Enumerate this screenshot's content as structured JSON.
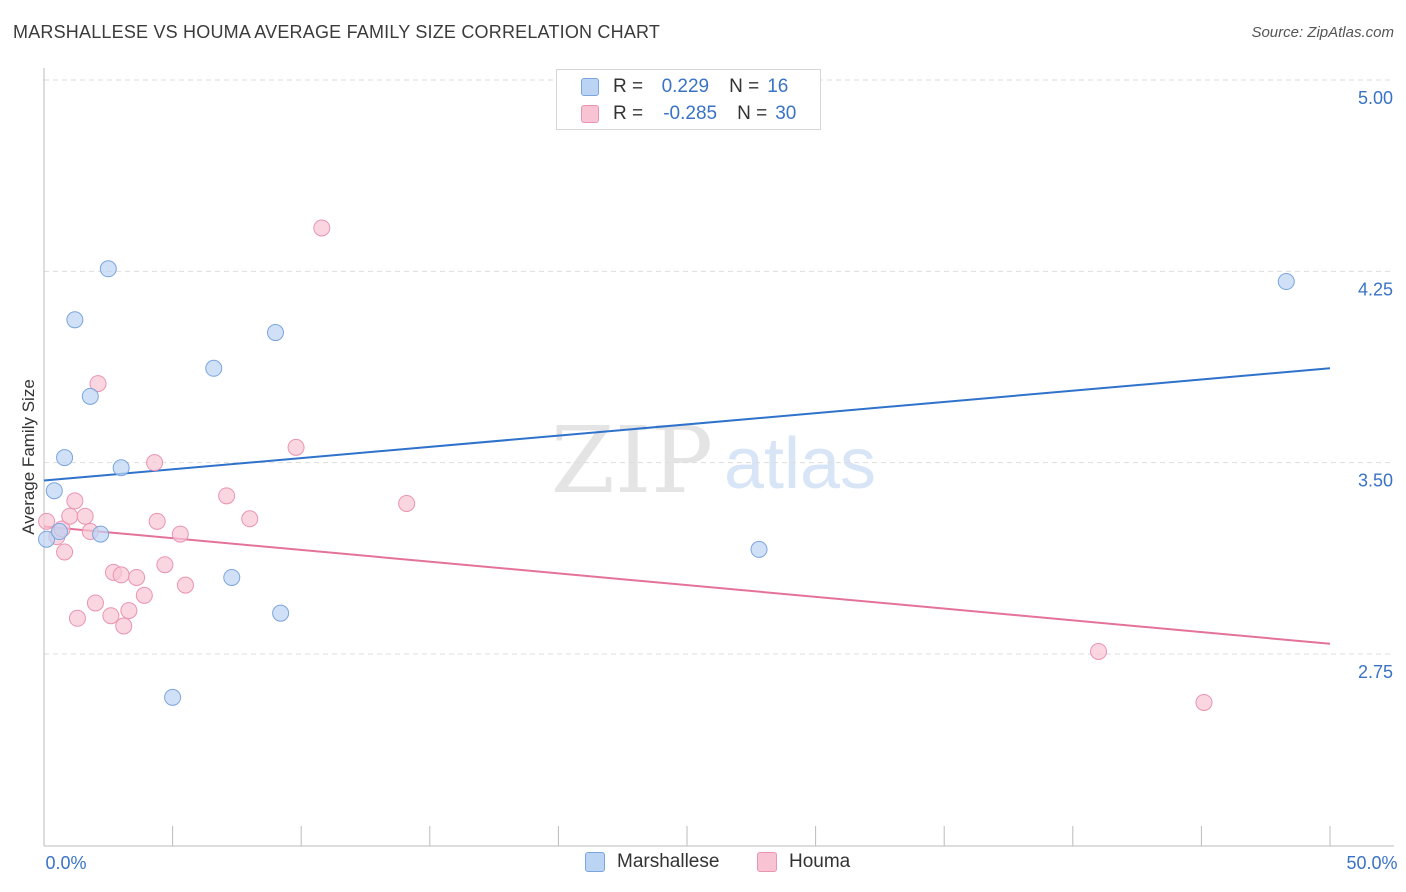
{
  "title": "MARSHALLESE VS HOUMA AVERAGE FAMILY SIZE CORRELATION CHART",
  "source": "Source: ZipAtlas.com",
  "watermark": {
    "zip": "ZIP",
    "atlas": "atlas"
  },
  "colors": {
    "blue_fill": "#bcd4f4",
    "blue_stroke": "#7aa5de",
    "blue_line": "#2f72cc",
    "pink_fill": "#f8c4d4",
    "pink_stroke": "#e994b0",
    "pink_line": "#e4729a",
    "tick_text": "#3a73c6"
  },
  "legend": [
    {
      "r_label": "R =",
      "r_value": "0.229",
      "n_label": "N =",
      "n_value": "16"
    },
    {
      "r_label": "R =",
      "r_value": "-0.285",
      "n_label": "N =",
      "n_value": "30"
    }
  ],
  "chart_data": {
    "type": "scatter",
    "title": "MARSHALLESE VS HOUMA AVERAGE FAMILY SIZE CORRELATION CHART",
    "xlabel": "",
    "ylabel": "Average Family Size",
    "xlim": [
      0,
      50
    ],
    "ylim": [
      2.0,
      5.1
    ],
    "x_tick_labels": [
      "0.0%",
      "50.0%"
    ],
    "y_ticks": [
      2.75,
      3.5,
      4.25,
      5.0
    ],
    "y_tick_labels": [
      "2.75",
      "3.50",
      "4.25",
      "5.00"
    ],
    "grid": true,
    "series": [
      {
        "name": "Marshallese",
        "points": [
          [
            0.1,
            3.2
          ],
          [
            0.4,
            3.39
          ],
          [
            0.8,
            3.52
          ],
          [
            1.2,
            4.06
          ],
          [
            1.8,
            3.76
          ],
          [
            2.5,
            4.26
          ],
          [
            2.2,
            3.22
          ],
          [
            3.0,
            3.48
          ],
          [
            5.0,
            2.58
          ],
          [
            6.6,
            3.87
          ],
          [
            7.3,
            3.05
          ],
          [
            9.0,
            4.01
          ],
          [
            9.2,
            2.91
          ],
          [
            27.8,
            3.16
          ],
          [
            48.3,
            4.21
          ],
          [
            0.6,
            3.23
          ]
        ],
        "trend": {
          "x": [
            0,
            50
          ],
          "y": [
            3.43,
            3.87
          ]
        }
      },
      {
        "name": "Houma",
        "points": [
          [
            0.1,
            3.27
          ],
          [
            0.5,
            3.21
          ],
          [
            0.7,
            3.24
          ],
          [
            0.8,
            3.15
          ],
          [
            1.0,
            3.29
          ],
          [
            1.2,
            3.35
          ],
          [
            1.3,
            2.89
          ],
          [
            1.6,
            3.29
          ],
          [
            1.8,
            3.23
          ],
          [
            2.0,
            2.95
          ],
          [
            2.1,
            3.81
          ],
          [
            2.6,
            2.9
          ],
          [
            2.7,
            3.07
          ],
          [
            3.0,
            3.06
          ],
          [
            3.1,
            2.86
          ],
          [
            3.3,
            2.92
          ],
          [
            3.6,
            3.05
          ],
          [
            3.9,
            2.98
          ],
          [
            4.3,
            3.5
          ],
          [
            4.4,
            3.27
          ],
          [
            4.7,
            3.1
          ],
          [
            5.3,
            3.22
          ],
          [
            5.5,
            3.02
          ],
          [
            7.1,
            3.37
          ],
          [
            8.0,
            3.28
          ],
          [
            9.8,
            3.56
          ],
          [
            10.8,
            4.42
          ],
          [
            14.1,
            3.34
          ],
          [
            41.0,
            2.76
          ],
          [
            45.1,
            2.56
          ]
        ],
        "trend": {
          "x": [
            0,
            50
          ],
          "y": [
            3.25,
            2.79
          ]
        }
      }
    ]
  }
}
